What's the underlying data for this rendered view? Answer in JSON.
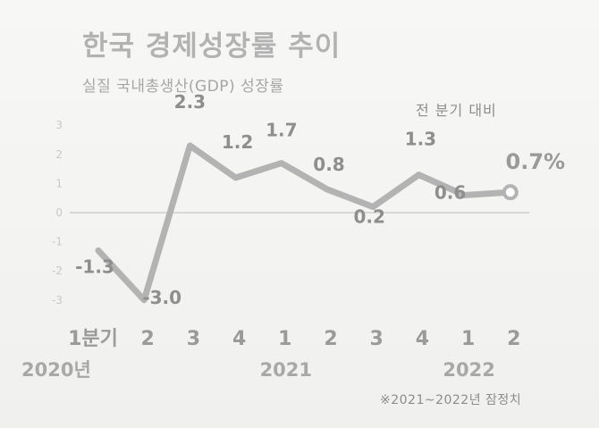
{
  "chart_data": {
    "type": "line",
    "title": "한국 경제성장률 추이",
    "subtitle": "실질 국내총생산(GDP) 성장률",
    "note": "전 분기 대비",
    "footnote": "※2021~2022년 잠정치",
    "categories": [
      "1분기",
      "2",
      "3",
      "4",
      "1",
      "2",
      "3",
      "4",
      "1",
      "2"
    ],
    "years": [
      {
        "label": "2020년",
        "category_index": 0
      },
      {
        "label": "2021",
        "category_index": 4
      },
      {
        "label": "2022",
        "category_index": 8
      }
    ],
    "values": [
      -1.3,
      -3.0,
      2.3,
      1.2,
      1.7,
      0.8,
      0.2,
      1.3,
      0.6,
      0.7
    ],
    "data_labels": [
      "-1.3",
      "-3.0",
      "2.3",
      "1.2",
      "1.7",
      "0.8",
      "0.2",
      "1.3",
      "0.6",
      "0.7%"
    ],
    "yticks": [
      "3",
      "2",
      "1",
      "0",
      "-1",
      "-2",
      "-3"
    ],
    "ylim": [
      -3.5,
      3.5
    ],
    "zero_line": true,
    "line_color": "#b3b3b3",
    "last_marker": "open-circle"
  }
}
